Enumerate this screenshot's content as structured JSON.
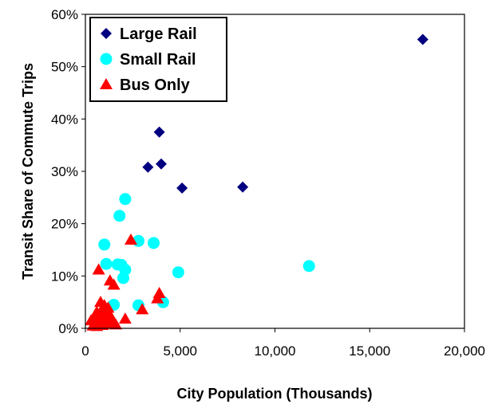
{
  "chart_data": {
    "type": "scatter",
    "title": "",
    "xlabel": "City Population (Thousands)",
    "ylabel": "Transit Share of Commute Trips",
    "xlim": [
      0,
      20000
    ],
    "ylim": [
      0,
      60
    ],
    "x_ticks": [
      "0",
      "5,000",
      "10,000",
      "15,000",
      "20,000"
    ],
    "y_ticks": [
      "0%",
      "10%",
      "20%",
      "30%",
      "40%",
      "50%",
      "60%"
    ],
    "grid": false,
    "legend_position": "top-left",
    "series": [
      {
        "name": "Large Rail",
        "marker": "diamond",
        "color": "#000080",
        "points": [
          [
            17800,
            55.2
          ],
          [
            3900,
            37.5
          ],
          [
            4000,
            31.4
          ],
          [
            3300,
            30.8
          ],
          [
            5100,
            26.8
          ],
          [
            8300,
            27.0
          ]
        ]
      },
      {
        "name": "Small Rail",
        "marker": "circle",
        "color": "#00ffff",
        "points": [
          [
            2100,
            24.7
          ],
          [
            1800,
            21.5
          ],
          [
            1000,
            16.0
          ],
          [
            2800,
            16.7
          ],
          [
            3600,
            16.3
          ],
          [
            1100,
            12.3
          ],
          [
            1700,
            12.2
          ],
          [
            1900,
            12.1
          ],
          [
            2100,
            11.2
          ],
          [
            2000,
            9.6
          ],
          [
            4900,
            10.7
          ],
          [
            11800,
            11.9
          ],
          [
            1500,
            4.5
          ],
          [
            2800,
            4.4
          ],
          [
            4100,
            5.0
          ]
        ]
      },
      {
        "name": "Bus Only",
        "marker": "triangle",
        "color": "#ff0000",
        "points": [
          [
            2400,
            16.9
          ],
          [
            700,
            11.2
          ],
          [
            1300,
            9.1
          ],
          [
            1500,
            8.3
          ],
          [
            3900,
            6.7
          ],
          [
            3800,
            5.7
          ],
          [
            800,
            5.0
          ],
          [
            1000,
            4.4
          ],
          [
            1200,
            3.9
          ],
          [
            900,
            3.5
          ],
          [
            1100,
            3.0
          ],
          [
            600,
            3.1
          ],
          [
            500,
            2.4
          ],
          [
            700,
            2.0
          ],
          [
            1300,
            2.5
          ],
          [
            1400,
            1.4
          ],
          [
            300,
            1.5
          ],
          [
            500,
            1.0
          ],
          [
            800,
            1.1
          ],
          [
            1000,
            1.6
          ],
          [
            1200,
            0.9
          ],
          [
            400,
            0.5
          ],
          [
            600,
            0.4
          ],
          [
            900,
            0.6
          ],
          [
            2100,
            1.8
          ],
          [
            3000,
            3.6
          ],
          [
            1600,
            0.7
          ]
        ]
      }
    ]
  }
}
